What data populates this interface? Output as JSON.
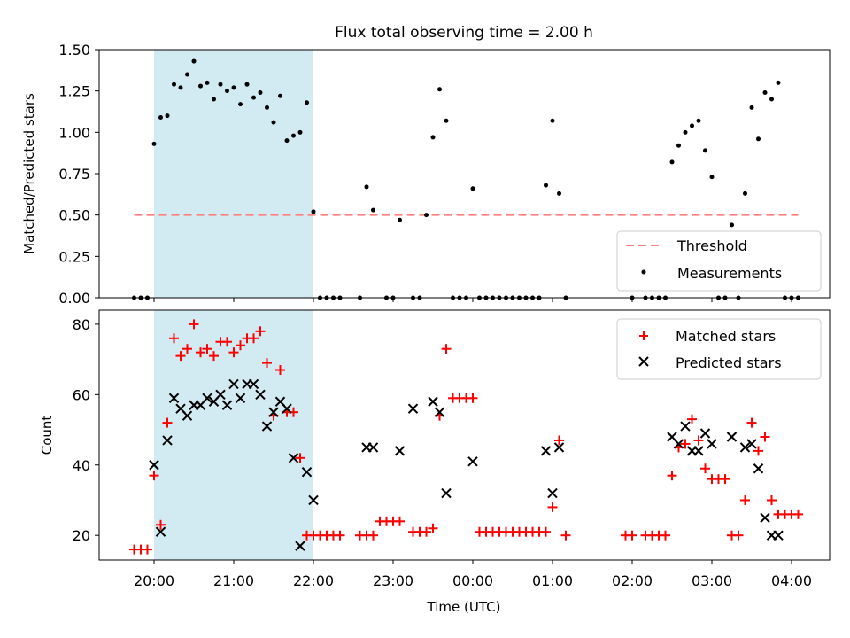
{
  "chart_data": [
    {
      "type": "scatter",
      "title": "Flux total observing time = 2.00 h",
      "ylabel": "Matched/Predicted stars",
      "xlabel": "",
      "ylim": [
        0,
        1.5
      ],
      "yticks": [
        "0.00",
        "0.25",
        "0.50",
        "0.75",
        "1.00",
        "1.25",
        "1.50"
      ],
      "grid": false,
      "legend_position": "lower-right",
      "threshold": {
        "name": "Threshold",
        "value": 0.5,
        "x_start": "19:45",
        "x_end": "04:05",
        "color": "#ff7f7f"
      },
      "shaded_region": {
        "x_start": "20:00",
        "x_end": "22:00",
        "color": "#add8e6"
      },
      "series": [
        {
          "name": "Measurements",
          "color": "#000000",
          "x": [
            "19:45",
            "19:50",
            "19:55",
            "20:00",
            "20:05",
            "20:10",
            "20:15",
            "20:20",
            "20:25",
            "20:30",
            "20:35",
            "20:40",
            "20:45",
            "20:50",
            "20:55",
            "21:00",
            "21:05",
            "21:10",
            "21:15",
            "21:20",
            "21:25",
            "21:30",
            "21:35",
            "21:40",
            "21:45",
            "21:50",
            "21:55",
            "22:00",
            "22:05",
            "22:10",
            "22:15",
            "22:20",
            "22:35",
            "22:40",
            "22:45",
            "22:55",
            "23:00",
            "23:05",
            "23:15",
            "23:20",
            "23:25",
            "23:30",
            "23:35",
            "23:40",
            "23:45",
            "23:50",
            "23:55",
            "00:00",
            "00:05",
            "00:10",
            "00:15",
            "00:20",
            "00:25",
            "00:30",
            "00:35",
            "00:40",
            "00:45",
            "00:50",
            "00:55",
            "01:00",
            "01:05",
            "01:10",
            "02:00",
            "02:10",
            "02:15",
            "02:20",
            "02:25",
            "02:30",
            "02:35",
            "02:40",
            "02:45",
            "02:50",
            "02:55",
            "03:00",
            "03:05",
            "03:10",
            "03:15",
            "03:20",
            "03:25",
            "03:30",
            "03:35",
            "03:40",
            "03:45",
            "03:50",
            "03:55",
            "04:00",
            "04:05"
          ],
          "y": [
            0,
            0,
            0,
            0.93,
            1.09,
            1.1,
            1.29,
            1.27,
            1.35,
            1.43,
            1.28,
            1.3,
            1.2,
            1.29,
            1.25,
            1.27,
            1.17,
            1.29,
            1.21,
            1.24,
            1.15,
            1.06,
            1.22,
            0.95,
            0.98,
            1.0,
            1.18,
            0.52,
            0,
            0,
            0,
            0,
            0,
            0.67,
            0.53,
            0,
            0,
            0.47,
            0,
            0,
            0.5,
            0.97,
            1.26,
            1.07,
            0,
            0,
            0,
            0.66,
            0,
            0,
            0,
            0,
            0,
            0,
            0,
            0,
            0,
            0,
            0.68,
            1.07,
            0.63,
            0,
            0,
            0,
            0,
            0,
            0,
            0.82,
            0.92,
            1.0,
            1.04,
            1.07,
            0.89,
            0.73,
            0,
            0,
            0.44,
            0,
            0.63,
            1.15,
            0.96,
            1.24,
            1.2,
            1.3,
            0,
            0,
            0
          ]
        }
      ]
    },
    {
      "type": "scatter",
      "title": "",
      "ylabel": "Count",
      "xlabel": "Time (UTC)",
      "ylim": [
        13,
        84
      ],
      "yticks": [
        "20",
        "40",
        "60",
        "80"
      ],
      "xticks": [
        "20:00",
        "21:00",
        "22:00",
        "23:00",
        "00:00",
        "01:00",
        "02:00",
        "03:00",
        "04:00"
      ],
      "grid": false,
      "legend_position": "upper-right",
      "shaded_region": {
        "x_start": "20:00",
        "x_end": "22:00",
        "color": "#add8e6"
      },
      "series": [
        {
          "name": "Matched stars",
          "marker": "plus",
          "color": "#ff0000",
          "x": [
            "19:45",
            "19:50",
            "19:55",
            "20:00",
            "20:05",
            "20:10",
            "20:15",
            "20:20",
            "20:25",
            "20:30",
            "20:35",
            "20:40",
            "20:45",
            "20:50",
            "20:55",
            "21:00",
            "21:05",
            "21:10",
            "21:15",
            "21:20",
            "21:25",
            "21:30",
            "21:35",
            "21:40",
            "21:45",
            "21:50",
            "21:55",
            "22:00",
            "22:05",
            "22:10",
            "22:15",
            "22:20",
            "22:35",
            "22:40",
            "22:45",
            "22:50",
            "22:55",
            "23:00",
            "23:05",
            "23:15",
            "23:20",
            "23:25",
            "23:30",
            "23:35",
            "23:40",
            "23:45",
            "23:50",
            "23:55",
            "00:00",
            "00:05",
            "00:10",
            "00:15",
            "00:20",
            "00:25",
            "00:30",
            "00:35",
            "00:40",
            "00:45",
            "00:50",
            "00:55",
            "01:00",
            "01:05",
            "01:10",
            "01:55",
            "02:00",
            "02:10",
            "02:15",
            "02:20",
            "02:25",
            "02:30",
            "02:35",
            "02:40",
            "02:45",
            "02:50",
            "02:55",
            "03:00",
            "03:05",
            "03:10",
            "03:15",
            "03:20",
            "03:25",
            "03:30",
            "03:35",
            "03:40",
            "03:45",
            "03:50",
            "03:55",
            "04:00",
            "04:05"
          ],
          "y": [
            16,
            16,
            16,
            37,
            23,
            52,
            76,
            71,
            73,
            80,
            72,
            73,
            71,
            75,
            75,
            72,
            74,
            76,
            76,
            78,
            69,
            54,
            67,
            55,
            55,
            42,
            20,
            20,
            20,
            20,
            20,
            20,
            20,
            20,
            20,
            24,
            24,
            24,
            24,
            21,
            21,
            21,
            22,
            54,
            73,
            59,
            59,
            59,
            59,
            21,
            21,
            21,
            21,
            21,
            21,
            21,
            21,
            21,
            21,
            21,
            28,
            47,
            20,
            20,
            20,
            20,
            20,
            20,
            20,
            37,
            45,
            46,
            53,
            47,
            39,
            36,
            36,
            36,
            20,
            20,
            30,
            52,
            44,
            48,
            30,
            26,
            26,
            26,
            26
          ]
        },
        {
          "name": "Predicted stars",
          "marker": "x",
          "color": "#000000",
          "x": [
            "20:00",
            "20:05",
            "20:10",
            "20:15",
            "20:20",
            "20:25",
            "20:30",
            "20:35",
            "20:40",
            "20:45",
            "20:50",
            "20:55",
            "21:00",
            "21:05",
            "21:10",
            "21:15",
            "21:20",
            "21:25",
            "21:30",
            "21:35",
            "21:40",
            "21:45",
            "21:50",
            "21:55",
            "22:00",
            "22:40",
            "22:45",
            "23:05",
            "23:15",
            "23:30",
            "23:35",
            "23:40",
            "00:00",
            "00:55",
            "01:00",
            "01:05",
            "02:30",
            "02:35",
            "02:40",
            "02:45",
            "02:50",
            "02:55",
            "03:00",
            "03:15",
            "03:25",
            "03:30",
            "03:35",
            "03:40",
            "03:45",
            "03:50"
          ],
          "y": [
            40,
            21,
            47,
            59,
            56,
            54,
            57,
            57,
            59,
            58,
            60,
            57,
            63,
            59,
            63,
            63,
            60,
            51,
            55,
            58,
            56,
            42,
            17,
            38,
            30,
            45,
            45,
            44,
            56,
            58,
            55,
            32,
            41,
            44,
            32,
            45,
            48,
            46,
            51,
            44,
            44,
            49,
            46,
            48,
            45,
            46,
            39,
            25,
            20,
            20
          ]
        }
      ]
    }
  ]
}
